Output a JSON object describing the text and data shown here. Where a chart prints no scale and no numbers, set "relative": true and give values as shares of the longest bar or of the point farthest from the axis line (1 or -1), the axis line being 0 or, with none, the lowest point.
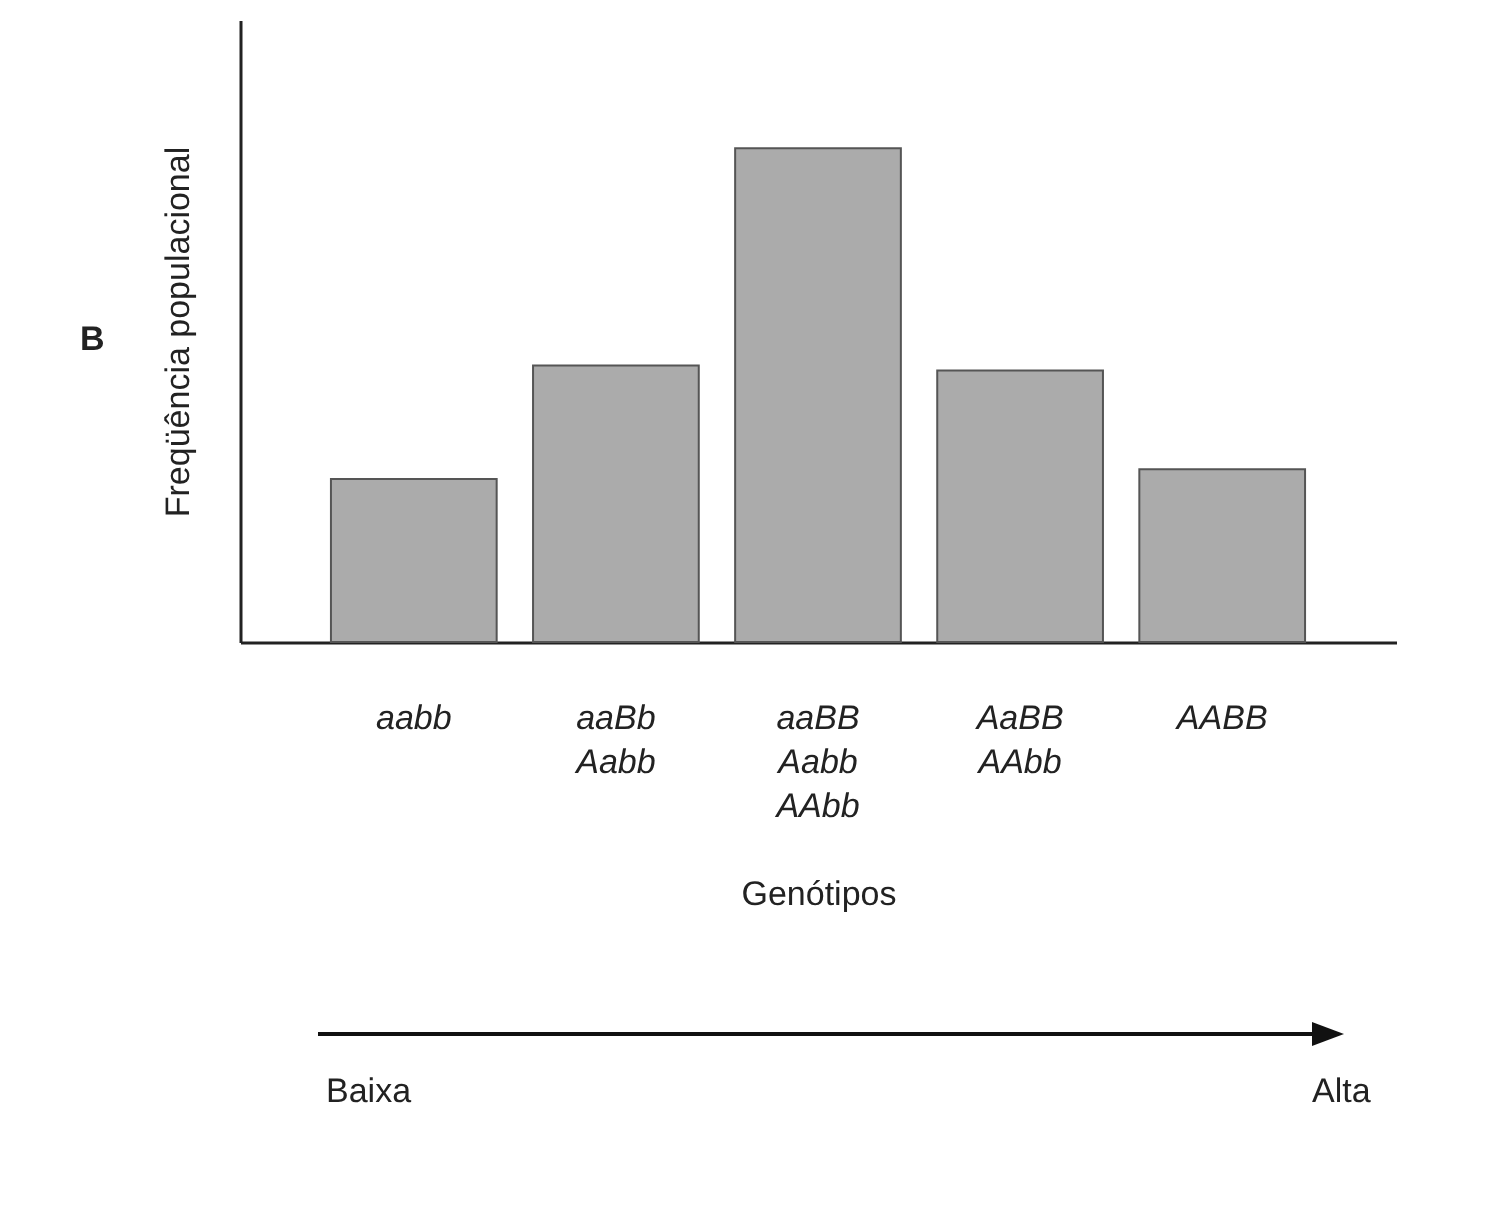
{
  "chart_data": {
    "type": "bar",
    "relative": true,
    "categories": [
      "aabb",
      "aaBb\nAabb",
      "aaBB\nAabb\nAAbb",
      "AaBB\nAAbb",
      "AABB"
    ],
    "values": [
      0.33,
      0.56,
      1,
      0.55,
      0.35
    ],
    "color": "#ababab",
    "ylabel": "Freqüência populacional",
    "xlabel": "Genótipos",
    "annotations": [
      "B",
      "Baixa",
      "Alta"
    ]
  }
}
